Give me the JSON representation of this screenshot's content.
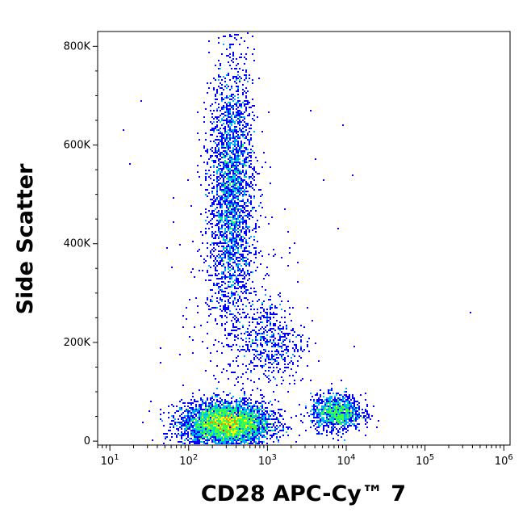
{
  "chart_data": {
    "type": "scatter",
    "subtype": "flow-cytometry-density-dot-plot",
    "xlabel": "CD28 APC-Cy™ 7",
    "ylabel": "Side Scatter",
    "x_scale": "log",
    "xlim": [
      7,
      1200000
    ],
    "ylim": [
      -8000,
      830000
    ],
    "x_ticks": [
      {
        "value": 10,
        "base": "10",
        "exp": "1"
      },
      {
        "value": 100,
        "base": "10",
        "exp": "2"
      },
      {
        "value": 1000,
        "base": "10",
        "exp": "3"
      },
      {
        "value": 10000,
        "base": "10",
        "exp": "4"
      },
      {
        "value": 100000,
        "base": "10",
        "exp": "5"
      },
      {
        "value": 1000000,
        "base": "10",
        "exp": "6"
      }
    ],
    "y_ticks": [
      {
        "value": 0,
        "label": "0"
      },
      {
        "value": 200000,
        "label": "200K"
      },
      {
        "value": 400000,
        "label": "400K"
      },
      {
        "value": 600000,
        "label": "600K"
      },
      {
        "value": 800000,
        "label": "800K"
      }
    ],
    "colormap": [
      "#0000ff",
      "#00a8ff",
      "#00e0c0",
      "#40ff40",
      "#ffff00",
      "#ff8000",
      "#ff0000"
    ],
    "grid": false,
    "populations": [
      {
        "x_center": 300,
        "y_center": 35000,
        "x_log_sd": 0.28,
        "y_sd": 22000,
        "count": 4200
      },
      {
        "x_center": 350,
        "y_center": 510000,
        "x_log_sd": 0.14,
        "y_sd": 130000,
        "count": 2600
      },
      {
        "x_center": 1100,
        "y_center": 200000,
        "x_log_sd": 0.22,
        "y_sd": 45000,
        "count": 500
      },
      {
        "x_center": 7500,
        "y_center": 58000,
        "x_log_sd": 0.16,
        "y_sd": 18000,
        "count": 1100
      },
      {
        "x_center": 400,
        "y_center": 300000,
        "x_log_sd": 0.35,
        "y_sd": 120000,
        "count": 300
      }
    ],
    "outliers": [
      {
        "x": 380000,
        "y": 260000
      },
      {
        "x": 15,
        "y": 630000
      },
      {
        "x": 25,
        "y": 690000
      },
      {
        "x": 9000,
        "y": 640000
      },
      {
        "x": 12000,
        "y": 540000
      },
      {
        "x": 4000,
        "y": 570000
      },
      {
        "x": 3500,
        "y": 670000
      },
      {
        "x": 8000,
        "y": 430000
      },
      {
        "x": 5200,
        "y": 530000
      },
      {
        "x": 18,
        "y": 560000
      }
    ]
  }
}
